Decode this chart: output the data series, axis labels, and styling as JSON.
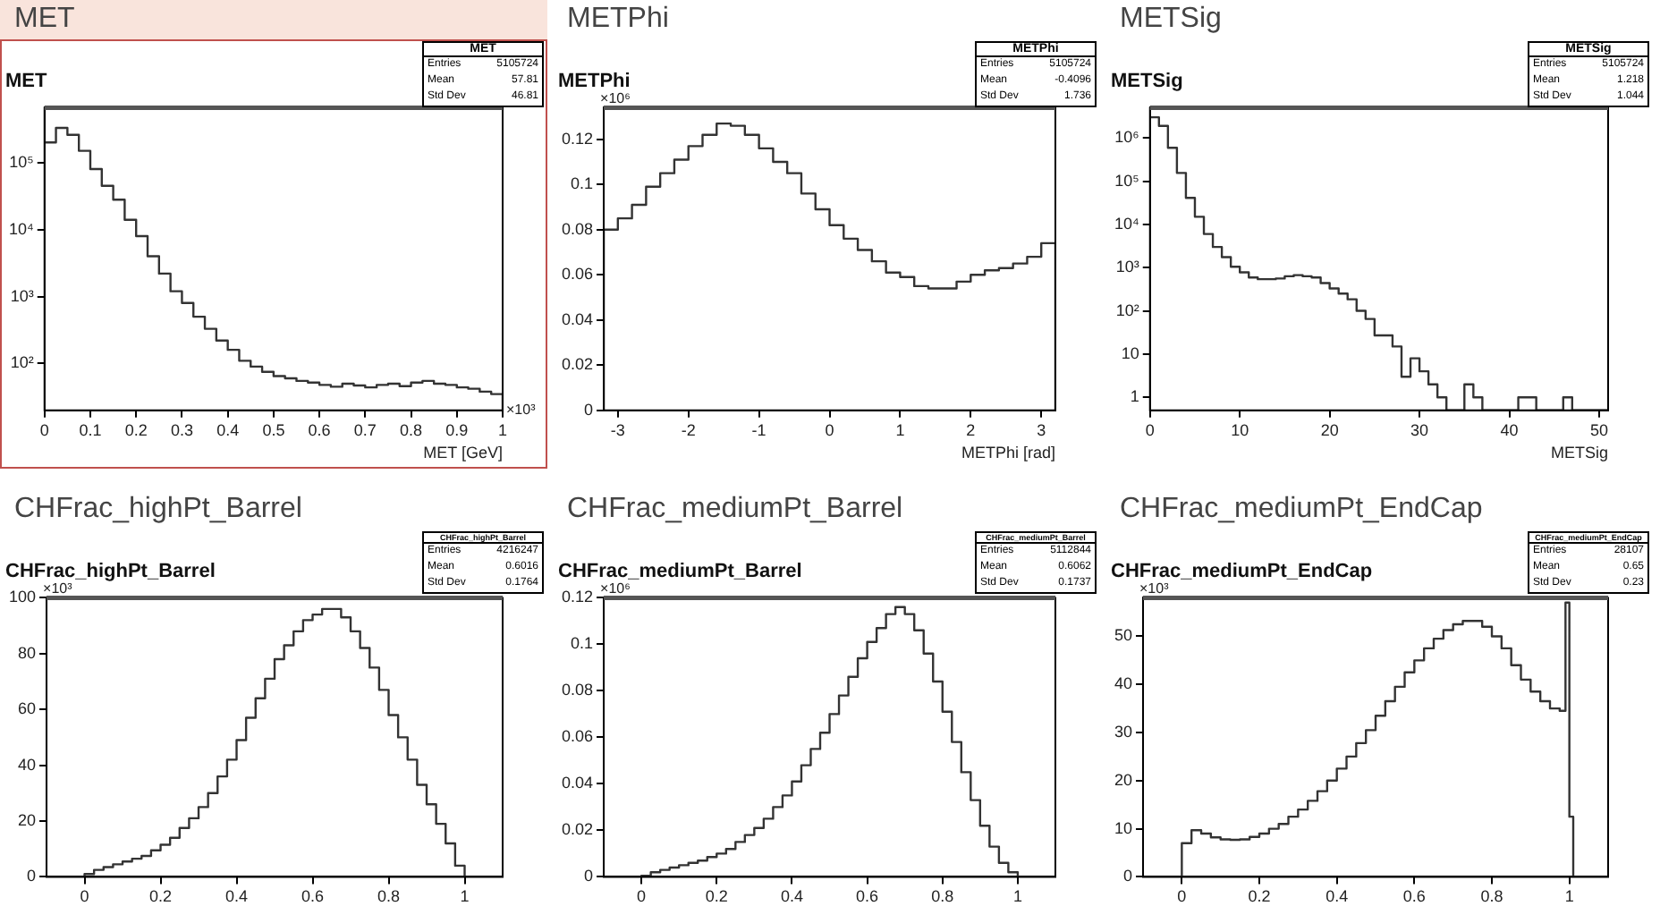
{
  "chart_data": [
    {
      "type": "histogram",
      "title": "MET",
      "subtitle": "MET",
      "xlabel": "MET [GeV]",
      "log": "y",
      "grid": false,
      "color": "#333333",
      "bins": [
        0,
        0.025,
        0.05,
        0.075,
        0.1,
        0.125,
        0.15,
        0.175,
        0.2,
        0.225,
        0.25,
        0.275,
        0.3,
        0.325,
        0.35,
        0.375,
        0.4,
        0.425,
        0.45,
        0.475,
        0.5,
        0.525,
        0.55,
        0.575,
        0.6,
        0.625,
        0.65,
        0.675,
        0.7,
        0.725,
        0.75,
        0.775,
        0.8,
        0.825,
        0.85,
        0.875,
        0.9,
        0.925,
        0.95,
        0.975,
        1
      ],
      "values": [
        200000,
        330000,
        260000,
        150000,
        80000,
        45000,
        28000,
        14000,
        8000,
        4000,
        2200,
        1200,
        800,
        500,
        330,
        220,
        160,
        110,
        90,
        75,
        65,
        60,
        55,
        52,
        48,
        45,
        50,
        47,
        44,
        48,
        50,
        46,
        52,
        55,
        50,
        48,
        44,
        42,
        38,
        35
      ],
      "xlim": [
        0,
        1
      ],
      "xticks": [
        0,
        0.1,
        0.2,
        0.3,
        0.4,
        0.5,
        0.6,
        0.7,
        0.8,
        0.9,
        1
      ],
      "ylim": [
        20,
        660000
      ],
      "yticks": [
        {
          "value": 100,
          "label": "10²"
        },
        {
          "value": 1000,
          "label": "10³"
        },
        {
          "value": 10000,
          "label": "10⁴"
        },
        {
          "value": 100000,
          "label": "10⁵"
        }
      ],
      "annotations": [
        "MET",
        "Entries",
        "5105724",
        "Mean",
        "57.81",
        "Std Dev",
        "46.81",
        "×10³"
      ]
    },
    {
      "type": "histogram",
      "title": "METPhi",
      "subtitle": "METPhi",
      "xlabel": "METPhi [rad]",
      "grid": false,
      "color": "#333333",
      "bins": [
        -3.2,
        -3,
        -2.8,
        -2.6,
        -2.4,
        -2.2,
        -2,
        -1.8,
        -1.6,
        -1.4,
        -1.2,
        -1,
        -0.8,
        -0.6,
        -0.4,
        -0.2,
        0,
        0.2,
        0.4,
        0.6,
        0.8,
        1,
        1.2,
        1.4,
        1.6,
        1.8,
        2,
        2.2,
        2.4,
        2.6,
        2.8,
        3,
        3.2
      ],
      "values": [
        0.08,
        0.085,
        0.091,
        0.099,
        0.105,
        0.111,
        0.117,
        0.122,
        0.127,
        0.126,
        0.122,
        0.116,
        0.11,
        0.105,
        0.096,
        0.089,
        0.082,
        0.076,
        0.071,
        0.066,
        0.061,
        0.059,
        0.055,
        0.054,
        0.054,
        0.057,
        0.06,
        0.062,
        0.063,
        0.065,
        0.068,
        0.074
      ],
      "xlim": [
        -3.2,
        3.2
      ],
      "xticks": [
        -3,
        -2,
        -1,
        0,
        1,
        2,
        3
      ],
      "ylim": [
        0,
        0.134
      ],
      "yticks": [
        0,
        0.02,
        0.04,
        0.06,
        0.08,
        0.1,
        0.12
      ],
      "annotations": [
        "METPhi",
        "Entries",
        "5105724",
        "Mean",
        "-0.4096",
        "Std Dev",
        "1.736",
        "×10⁶"
      ]
    },
    {
      "type": "histogram",
      "title": "METSig",
      "subtitle": "METSig",
      "xlabel": "METSig",
      "log": "y",
      "grid": false,
      "color": "#333333",
      "bins": [
        0,
        1,
        2,
        3,
        4,
        5,
        6,
        7,
        8,
        9,
        10,
        11,
        12,
        13,
        14,
        15,
        16,
        17,
        18,
        19,
        20,
        21,
        22,
        23,
        24,
        25,
        26,
        27,
        28,
        29,
        30,
        31,
        32,
        33,
        34,
        35,
        36,
        37,
        38,
        39,
        40,
        41,
        42,
        43,
        44,
        45,
        46,
        47,
        48,
        49,
        50,
        51
      ],
      "values": [
        3000000,
        1900000,
        590000,
        155000,
        41000,
        15000,
        6000,
        3000,
        1750,
        1050,
        780,
        590,
        540,
        540,
        560,
        630,
        670,
        630,
        590,
        440,
        330,
        250,
        185,
        100,
        65,
        27,
        27,
        15,
        3,
        8,
        4,
        2,
        1,
        null,
        null,
        2,
        1,
        null,
        null,
        null,
        null,
        1,
        1,
        null,
        null,
        null,
        1,
        null,
        null,
        null,
        null
      ],
      "xlim": [
        0,
        51
      ],
      "xticks": [
        0,
        10,
        20,
        30,
        40,
        50
      ],
      "ylim": [
        0.5,
        5000000
      ],
      "yticks": [
        1,
        10,
        {
          "value": 100,
          "label": "10²"
        },
        {
          "value": 1000,
          "label": "10³"
        },
        {
          "value": 10000,
          "label": "10⁴"
        },
        {
          "value": 100000,
          "label": "10⁵"
        },
        {
          "value": 1000000,
          "label": "10⁶"
        }
      ],
      "annotations": [
        "METSig",
        "Entries",
        "5105724",
        "Mean",
        "1.218",
        "Std Dev",
        "1.044"
      ]
    },
    {
      "type": "histogram",
      "title": "CHFrac_highPt_Barrel",
      "subtitle": "CHFrac_highPt_Barrel",
      "grid": false,
      "color": "#333333",
      "bins": [
        0,
        0.025,
        0.05,
        0.075,
        0.1,
        0.125,
        0.15,
        0.175,
        0.2,
        0.225,
        0.25,
        0.275,
        0.3,
        0.325,
        0.35,
        0.375,
        0.4,
        0.425,
        0.45,
        0.475,
        0.5,
        0.525,
        0.55,
        0.575,
        0.6,
        0.625,
        0.65,
        0.675,
        0.7,
        0.725,
        0.75,
        0.775,
        0.8,
        0.825,
        0.85,
        0.875,
        0.9,
        0.925,
        0.95,
        0.975,
        1
      ],
      "values": [
        1,
        2.5,
        3.5,
        4.5,
        5.5,
        6.5,
        7.5,
        9.5,
        11.5,
        14,
        17.5,
        21,
        25,
        30,
        36,
        42,
        49,
        57,
        64,
        71,
        78,
        83,
        88,
        92,
        94,
        96,
        96,
        93,
        88,
        82,
        75,
        67,
        58,
        50,
        42,
        33,
        26,
        19,
        12,
        4
      ],
      "xlim": [
        -0.1,
        1.1
      ],
      "xticks": [
        0,
        0.2,
        0.4,
        0.6,
        0.8,
        1
      ],
      "ylim": [
        0,
        100
      ],
      "yticks": [
        0,
        20,
        40,
        60,
        80,
        100
      ],
      "annotations": [
        "CHFrac_highPt_Barrel",
        "Entries",
        "4216247",
        "Mean",
        "0.6016",
        "Std Dev",
        "0.1764",
        "×10³"
      ]
    },
    {
      "type": "histogram",
      "title": "CHFrac_mediumPt_Barrel",
      "subtitle": "CHFrac_mediumPt_Barrel",
      "grid": false,
      "color": "#333333",
      "bins": [
        0,
        0.025,
        0.05,
        0.075,
        0.1,
        0.125,
        0.15,
        0.175,
        0.2,
        0.225,
        0.25,
        0.275,
        0.3,
        0.325,
        0.35,
        0.375,
        0.4,
        0.425,
        0.45,
        0.475,
        0.5,
        0.525,
        0.55,
        0.575,
        0.6,
        0.625,
        0.65,
        0.675,
        0.7,
        0.725,
        0.75,
        0.775,
        0.8,
        0.825,
        0.85,
        0.875,
        0.9,
        0.925,
        0.95,
        0.975,
        1
      ],
      "values": [
        0.0005,
        0.002,
        0.003,
        0.004,
        0.005,
        0.006,
        0.007,
        0.0085,
        0.01,
        0.012,
        0.015,
        0.018,
        0.021,
        0.025,
        0.03,
        0.035,
        0.041,
        0.048,
        0.055,
        0.062,
        0.07,
        0.078,
        0.086,
        0.094,
        0.101,
        0.107,
        0.113,
        0.116,
        0.113,
        0.106,
        0.096,
        0.084,
        0.071,
        0.058,
        0.045,
        0.033,
        0.022,
        0.013,
        0.006,
        0.002
      ],
      "xlim": [
        -0.1,
        1.1
      ],
      "xticks": [
        0,
        0.2,
        0.4,
        0.6,
        0.8,
        1
      ],
      "ylim": [
        0,
        0.12
      ],
      "yticks": [
        0,
        0.02,
        0.04,
        0.06,
        0.08,
        0.1,
        0.12
      ],
      "annotations": [
        "CHFrac_mediumPt_Barrel",
        "Entries",
        "5112844",
        "Mean",
        "0.6062",
        "Std Dev",
        "0.1737",
        "×10⁶"
      ]
    },
    {
      "type": "histogram",
      "title": "CHFrac_mediumPt_EndCap",
      "subtitle": "CHFrac_mediumPt_EndCap",
      "grid": false,
      "color": "#333333",
      "bins": [
        0,
        0.025,
        0.05,
        0.075,
        0.1,
        0.125,
        0.15,
        0.175,
        0.2,
        0.225,
        0.25,
        0.275,
        0.3,
        0.325,
        0.35,
        0.375,
        0.4,
        0.425,
        0.45,
        0.475,
        0.5,
        0.525,
        0.55,
        0.575,
        0.6,
        0.625,
        0.65,
        0.675,
        0.7,
        0.725,
        0.75,
        0.775,
        0.8,
        0.825,
        0.85,
        0.875,
        0.9,
        0.925,
        0.95,
        0.975,
        0.99,
        1,
        1.01
      ],
      "values": [
        7,
        9.7,
        9,
        8.2,
        7.8,
        7.7,
        7.8,
        8.3,
        9,
        10,
        11,
        12.5,
        14,
        15.8,
        17.8,
        20,
        22.5,
        25,
        27.8,
        30.5,
        33.5,
        36.5,
        39.5,
        42.5,
        45,
        47.5,
        49.5,
        51.3,
        52.5,
        53.2,
        53.2,
        52,
        50,
        47.5,
        44,
        41,
        38.5,
        36.5,
        35,
        34.5,
        57,
        12.5
      ],
      "xlim": [
        -0.1,
        1.1
      ],
      "xticks": [
        0,
        0.2,
        0.4,
        0.6,
        0.8,
        1
      ],
      "ylim": [
        0,
        58
      ],
      "yticks": [
        0,
        10,
        20,
        30,
        40,
        50
      ],
      "annotations": [
        "CHFrac_mediumPt_EndCap",
        "Entries",
        "28107",
        "Mean",
        "0.65",
        "Std Dev",
        "0.23",
        "×10³"
      ]
    }
  ]
}
